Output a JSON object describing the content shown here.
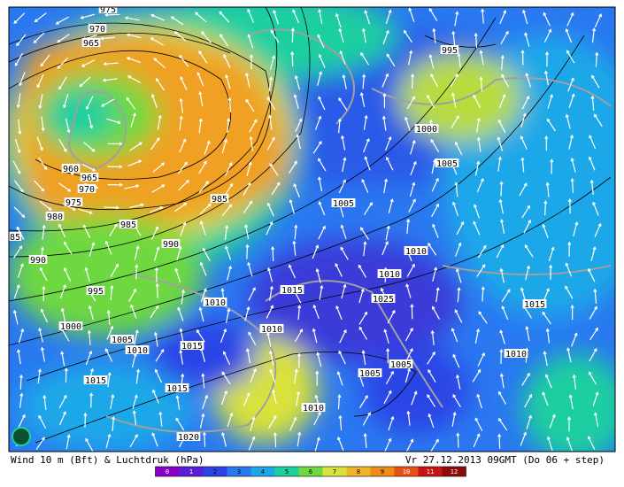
{
  "map": {
    "isobar_labels": [
      975,
      970,
      965,
      960,
      965,
      970,
      975,
      980,
      985,
      985,
      85,
      990,
      990,
      995,
      1000,
      1005,
      1010,
      1015,
      1015,
      1015,
      1020,
      1010,
      1010,
      1015,
      1010,
      1005,
      1005,
      1010,
      1010,
      1005,
      1005,
      1000,
      995,
      1025,
      1015,
      1010
    ]
  },
  "footer": {
    "left": "Wind 10 m (Bft) & Luchtdruk (hPa)",
    "right": "Vr 27.12.2013 09GMT (Do 06 + step)"
  },
  "colorbar": {
    "ticks": [
      0,
      1,
      2,
      3,
      4,
      5,
      6,
      7,
      8,
      9,
      10,
      11,
      12
    ],
    "colors": [
      "#8a00c8",
      "#5a1ed8",
      "#2a44e6",
      "#2a78f0",
      "#1ca8e8",
      "#1ecfa0",
      "#6ed840",
      "#d8e23a",
      "#f0b428",
      "#f08a18",
      "#e85016",
      "#c81414",
      "#8c0a0a"
    ]
  }
}
